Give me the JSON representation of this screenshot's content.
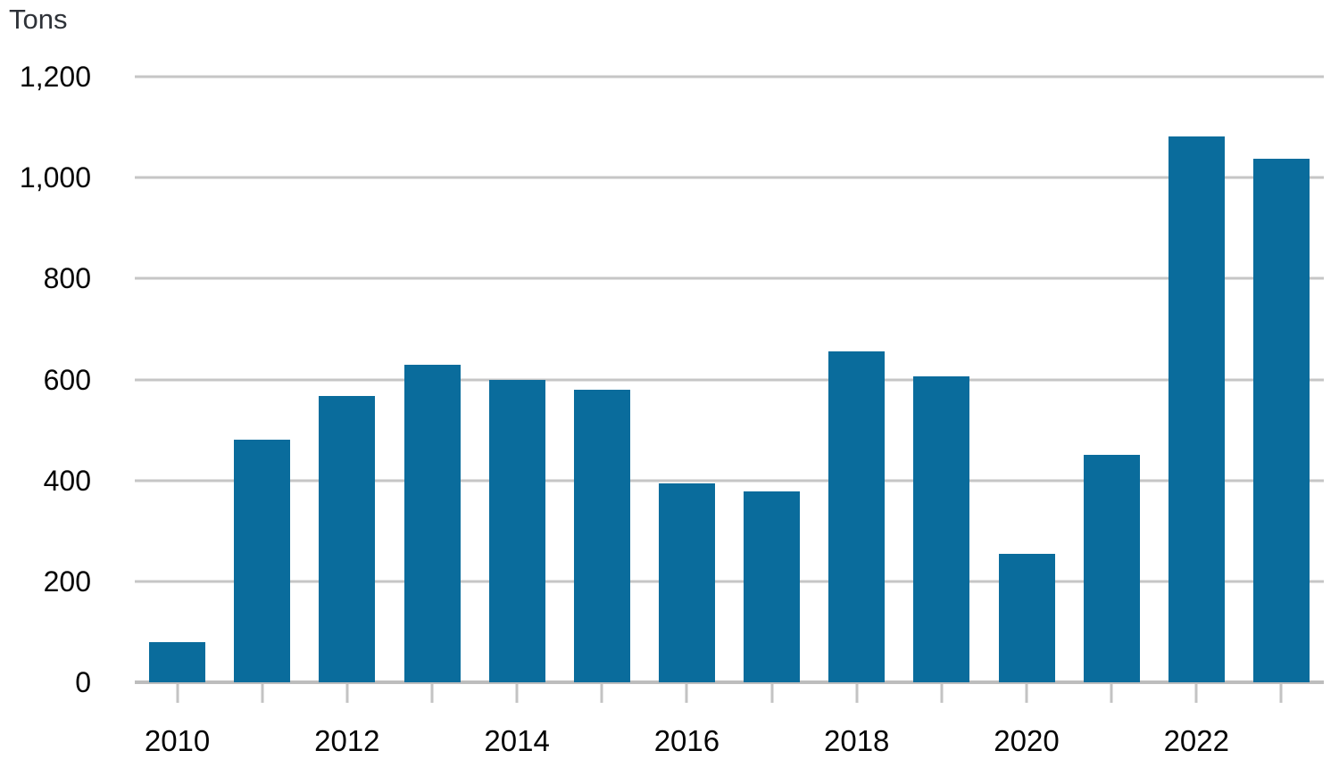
{
  "unit_label": "Tons",
  "colors": {
    "bar": "#0a6c9c",
    "gridline": "#c6c6c6",
    "baseline": "#bdbdbd",
    "tick": "#c3c3c3",
    "unit_text": "#2e3238",
    "axis_text": "#050505",
    "background": "#ffffff"
  },
  "chart_data": {
    "type": "bar",
    "title": "",
    "xlabel": "",
    "ylabel": "Tons",
    "categories": [
      "2010",
      "2011",
      "2012",
      "2013",
      "2014",
      "2015",
      "2016",
      "2017",
      "2018",
      "2019",
      "2020",
      "2021",
      "2022",
      "2023"
    ],
    "values": [
      80,
      480,
      567,
      630,
      600,
      580,
      395,
      378,
      656,
      606,
      255,
      450,
      1082,
      1037
    ],
    "ylim": [
      0,
      1200
    ],
    "y_ticks": [
      0,
      200,
      400,
      600,
      800,
      1000,
      1200
    ],
    "y_tick_labels": [
      "0",
      "200",
      "400",
      "600",
      "800",
      "1,000",
      "1,200"
    ],
    "x_tick_labels_shown": [
      "2010",
      "2012",
      "2014",
      "2016",
      "2018",
      "2020",
      "2022"
    ],
    "x_label_every": 2,
    "grid": "horizontal",
    "legend": "none"
  }
}
